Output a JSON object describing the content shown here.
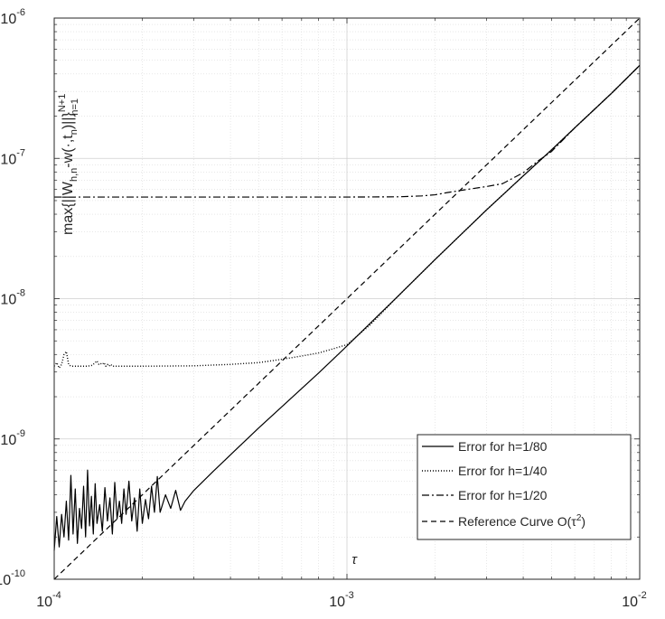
{
  "chart_data": {
    "type": "line",
    "xscale": "log",
    "yscale": "log",
    "xlim": [
      0.0001,
      0.01
    ],
    "ylim": [
      1e-10,
      1e-06
    ],
    "grid": true,
    "legend_position": "lower-right",
    "xlabel": "τ",
    "ylabel": {
      "main": "max{||W",
      "sub1": "h,n",
      "mid": "-w(·,t",
      "sub2": "n",
      "end": ")||}",
      "sup": "N+1",
      "sub3": "n=1"
    },
    "x_ticks": [
      {
        "value": 0.0001,
        "base": "10",
        "exp": "-4"
      },
      {
        "value": 0.001,
        "base": "10",
        "exp": "-3"
      },
      {
        "value": 0.01,
        "base": "10",
        "exp": "-2"
      }
    ],
    "y_ticks": [
      {
        "value": 1e-10,
        "base": "10",
        "exp": "-10"
      },
      {
        "value": 1e-09,
        "base": "10",
        "exp": "-9"
      },
      {
        "value": 1e-08,
        "base": "10",
        "exp": "-8"
      },
      {
        "value": 1e-07,
        "base": "10",
        "exp": "-7"
      },
      {
        "value": 1e-06,
        "base": "10",
        "exp": "-6"
      }
    ],
    "series": [
      {
        "name": "Error for h=1/80",
        "style": "solid",
        "color": "#000000",
        "x": [
          0.0001,
          0.000102,
          0.000104,
          0.000106,
          0.000108,
          0.00011,
          0.000112,
          0.000114,
          0.000116,
          0.000118,
          0.00012,
          0.000122,
          0.000124,
          0.000126,
          0.000128,
          0.00013,
          0.000132,
          0.000134,
          0.000136,
          0.000138,
          0.00014,
          0.000143,
          0.000146,
          0.000149,
          0.000152,
          0.000155,
          0.000158,
          0.000161,
          0.000164,
          0.000167,
          0.00017,
          0.000173,
          0.000176,
          0.00018,
          0.000184,
          0.000188,
          0.000192,
          0.000196,
          0.0002,
          0.000205,
          0.00021,
          0.000215,
          0.00022,
          0.000225,
          0.00023,
          0.00024,
          0.00025,
          0.00026,
          0.00027,
          0.00028,
          0.0003,
          0.00035,
          0.0004,
          0.0005,
          0.0006,
          0.0008,
          0.001,
          0.0015,
          0.002,
          0.003,
          0.004,
          0.005,
          0.006,
          0.008,
          0.01
        ],
        "y": [
          1.6e-10,
          2.8e-10,
          1.7e-10,
          2.9e-10,
          2e-10,
          3.6e-10,
          1.9e-10,
          5.5e-10,
          2.1e-10,
          4.4e-10,
          1.8e-10,
          3.2e-10,
          2.3e-10,
          4.6e-10,
          2e-10,
          6e-10,
          2.4e-10,
          3.9e-10,
          2.1e-10,
          4.8e-10,
          2.5e-10,
          3.4e-10,
          2.2e-10,
          4.5e-10,
          2.6e-10,
          3.8e-10,
          2.1e-10,
          4.9e-10,
          2.7e-10,
          3.6e-10,
          2.5e-10,
          4.4e-10,
          2.9e-10,
          5e-10,
          2.6e-10,
          3.8e-10,
          2.2e-10,
          4.4e-10,
          2.5e-10,
          3.7e-10,
          2.7e-10,
          4.6e-10,
          3e-10,
          5.4e-10,
          3e-10,
          4e-10,
          3.2e-10,
          4.3e-10,
          3.1e-10,
          3.6e-10,
          4.3e-10,
          5.9e-10,
          7.7e-10,
          1.2e-09,
          1.7e-09,
          2.95e-09,
          4.6e-09,
          1.05e-08,
          1.9e-08,
          4.3e-08,
          7.5e-08,
          1.15e-07,
          1.65e-07,
          2.9e-07,
          4.6e-07
        ]
      },
      {
        "name": "Error for h=1/40",
        "style": "dotted",
        "color": "#000000",
        "x": [
          0.0001,
          0.000102,
          0.000104,
          0.000106,
          0.000108,
          0.00011,
          0.000112,
          0.000114,
          0.000116,
          0.000118,
          0.00012,
          0.000125,
          0.00013,
          0.000135,
          0.00014,
          0.000142,
          0.000144,
          0.000146,
          0.000148,
          0.00015,
          0.000152,
          0.000154,
          0.000156,
          0.000158,
          0.00016,
          0.00017,
          0.0002,
          0.0003,
          0.0004,
          0.0005,
          0.0006,
          0.0007,
          0.0008,
          0.0009,
          0.001,
          0.0012,
          0.0015,
          0.002,
          0.003,
          0.004,
          0.005,
          0.006,
          0.008,
          0.01
        ],
        "y": [
          3.3e-09,
          3.5e-09,
          3.2e-09,
          3.4e-09,
          4e-09,
          4.2e-09,
          3.4e-09,
          3.3e-09,
          3.3e-09,
          3.3e-09,
          3.3e-09,
          3.3e-09,
          3.3e-09,
          3.35e-09,
          3.6e-09,
          3.4e-09,
          3.45e-09,
          3.4e-09,
          3.5e-09,
          3.3e-09,
          3.4e-09,
          3.3e-09,
          3.4e-09,
          3.3e-09,
          3.3e-09,
          3.3e-09,
          3.3e-09,
          3.32e-09,
          3.4e-09,
          3.5e-09,
          3.7e-09,
          3.9e-09,
          4.1e-09,
          4.4e-09,
          4.7e-09,
          6.5e-09,
          1.05e-08,
          1.9e-08,
          4.3e-08,
          7.5e-08,
          1.15e-07,
          1.65e-07,
          2.9e-07,
          4.6e-07
        ]
      },
      {
        "name": "Error for h=1/20",
        "style": "dashdot",
        "color": "#000000",
        "x": [
          0.0001,
          0.0002,
          0.0005,
          0.001,
          0.0015,
          0.0018,
          0.002,
          0.0022,
          0.0025,
          0.003,
          0.0034,
          0.004,
          0.0045,
          0.005,
          0.006,
          0.008,
          0.01
        ],
        "y": [
          5.3e-08,
          5.3e-08,
          5.3e-08,
          5.3e-08,
          5.32e-08,
          5.4e-08,
          5.5e-08,
          5.7e-08,
          5.95e-08,
          6.3e-08,
          6.6e-08,
          7.9e-08,
          9.6e-08,
          1.12e-07,
          1.65e-07,
          2.9e-07,
          4.6e-07
        ]
      },
      {
        "name": "Reference Curve O(τ²)",
        "legend_text": "Reference Curve O(τ",
        "legend_sup": "2",
        "legend_tail": ")",
        "style": "dashed",
        "color": "#000000",
        "x": [
          0.0001,
          0.01
        ],
        "y": [
          1e-10,
          1e-06
        ]
      }
    ]
  }
}
